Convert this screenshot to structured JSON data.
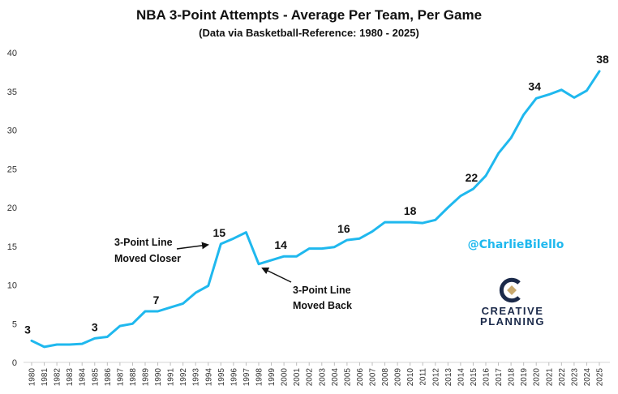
{
  "chart_data": {
    "type": "line",
    "title": "NBA 3-Point Attempts - Average Per Team, Per Game",
    "subtitle": "(Data via Basketball-Reference: 1980 - 2025)",
    "xlabel": "",
    "ylabel": "",
    "ylim": [
      0,
      40
    ],
    "yticks": [
      0,
      5,
      10,
      15,
      20,
      25,
      30,
      35,
      40
    ],
    "grid": false,
    "legend": "none",
    "x": [
      1980,
      1981,
      1982,
      1983,
      1984,
      1985,
      1986,
      1987,
      1988,
      1989,
      1990,
      1991,
      1992,
      1993,
      1994,
      1995,
      1996,
      1997,
      1998,
      1999,
      2000,
      2001,
      2002,
      2003,
      2004,
      2005,
      2006,
      2007,
      2008,
      2009,
      2010,
      2011,
      2012,
      2013,
      2014,
      2015,
      2016,
      2017,
      2018,
      2019,
      2020,
      2021,
      2022,
      2023,
      2024,
      2025
    ],
    "series": [
      {
        "name": "3-Point Attempts Per Team Per Game",
        "color": "#1FB8EE",
        "values": [
          2.8,
          2.0,
          2.3,
          2.3,
          2.4,
          3.1,
          3.3,
          4.7,
          5.0,
          6.6,
          6.6,
          7.1,
          7.6,
          9.0,
          9.9,
          15.3,
          16.0,
          16.8,
          12.7,
          13.2,
          13.7,
          13.7,
          14.7,
          14.7,
          14.9,
          15.8,
          16.0,
          16.9,
          18.1,
          18.1,
          18.1,
          18.0,
          18.4,
          20.0,
          21.5,
          22.4,
          24.1,
          27.0,
          29.0,
          32.0,
          34.1,
          34.6,
          35.2,
          34.2,
          35.1,
          37.6
        ]
      }
    ],
    "data_labels": [
      {
        "year": 1980,
        "value": 2.8,
        "text": "3"
      },
      {
        "year": 1985,
        "value": 3.1,
        "text": "3"
      },
      {
        "year": 1990,
        "value": 6.6,
        "text": "7"
      },
      {
        "year": 1995,
        "value": 15.3,
        "text": "15"
      },
      {
        "year": 2000,
        "value": 13.7,
        "text": "14"
      },
      {
        "year": 2005,
        "value": 15.8,
        "text": "16"
      },
      {
        "year": 2010,
        "value": 18.1,
        "text": "18"
      },
      {
        "year": 2015,
        "value": 22.4,
        "text": "22"
      },
      {
        "year": 2020,
        "value": 34.1,
        "text": "34"
      },
      {
        "year": 2025,
        "value": 37.6,
        "text": "38"
      }
    ],
    "annotations": [
      {
        "lines": [
          "3-Point Line",
          "Moved Closer"
        ],
        "points_to_year": 1995
      },
      {
        "lines": [
          "3-Point Line",
          "Moved Back"
        ],
        "points_to_year": 1998
      }
    ]
  },
  "watermark": {
    "handle": "@CharlieBilello",
    "handle_color": "#1FB8EE",
    "brand_line1": "CREATIVE",
    "brand_line2": "PLANNING",
    "brand_color": "#1B2A4A",
    "logo_accent_color": "#C9A96E"
  }
}
